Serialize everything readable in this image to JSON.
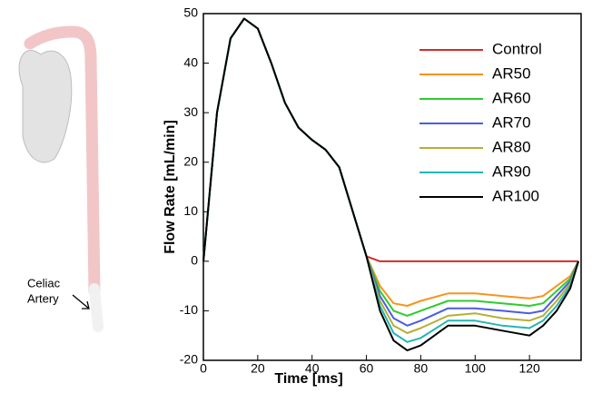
{
  "chart_data": {
    "type": "line",
    "xlabel": "Time [ms]",
    "ylabel": "Flow Rate [mL/min]",
    "annotations": [
      "Celiac",
      "Artery"
    ],
    "x": [
      0,
      5,
      10,
      15,
      20,
      25,
      30,
      35,
      40,
      45,
      50,
      55,
      60,
      65,
      70,
      75,
      80,
      90,
      100,
      110,
      120,
      125,
      130,
      135,
      138
    ],
    "series": [
      {
        "name": "Control",
        "color": "#d42a2a",
        "values": [
          0,
          30,
          45,
          49,
          47,
          40,
          32,
          27,
          24.5,
          22.5,
          19,
          10,
          1,
          0,
          0,
          0,
          0,
          0,
          0,
          0,
          0,
          0,
          0,
          0,
          0
        ]
      },
      {
        "name": "AR50",
        "color": "#f7941d",
        "values": [
          0,
          30,
          45,
          49,
          47,
          40,
          32,
          27,
          24.5,
          22.5,
          19,
          10,
          1,
          -5,
          -8.5,
          -9,
          -8,
          -6.5,
          -6.5,
          -7,
          -7.5,
          -7,
          -5,
          -3,
          0
        ]
      },
      {
        "name": "AR60",
        "color": "#2ecc2e",
        "values": [
          0,
          30,
          45,
          49,
          47,
          40,
          32,
          27,
          24.5,
          22.5,
          19,
          10,
          1,
          -6,
          -10,
          -11,
          -10,
          -8,
          -8,
          -8.5,
          -9,
          -8.5,
          -6,
          -3.5,
          0
        ]
      },
      {
        "name": "AR70",
        "color": "#4a5be8",
        "values": [
          0,
          30,
          45,
          49,
          47,
          40,
          32,
          27,
          24.5,
          22.5,
          19,
          10,
          1,
          -7,
          -11.5,
          -13,
          -12,
          -9.5,
          -9.5,
          -10,
          -10.5,
          -10,
          -7,
          -4,
          0
        ]
      },
      {
        "name": "AR80",
        "color": "#b5b032",
        "values": [
          0,
          30,
          45,
          49,
          47,
          40,
          32,
          27,
          24.5,
          22.5,
          19,
          10,
          1,
          -8,
          -13,
          -14.5,
          -13.5,
          -11,
          -10.5,
          -11.5,
          -12,
          -11,
          -8,
          -4.5,
          0
        ]
      },
      {
        "name": "AR90",
        "color": "#25b5b5",
        "values": [
          0,
          30,
          45,
          49,
          47,
          40,
          32,
          27,
          24.5,
          22.5,
          19,
          10,
          1,
          -9,
          -14.5,
          -16.3,
          -15.5,
          -12,
          -12,
          -13,
          -13.5,
          -12,
          -9,
          -5,
          0
        ]
      },
      {
        "name": "AR100",
        "color": "#000000",
        "values": [
          0,
          30,
          45,
          49,
          47,
          40,
          32,
          27,
          24.5,
          22.5,
          19,
          10,
          1,
          -10,
          -16,
          -18,
          -17,
          -13,
          -13,
          -14,
          -15,
          -13,
          -10,
          -5.5,
          0
        ]
      }
    ],
    "xlim": [
      0,
      139
    ],
    "xticks": [
      0,
      20,
      40,
      60,
      80,
      100,
      120
    ],
    "ylim": [
      -20,
      50
    ],
    "yticks": [
      -20,
      -10,
      0,
      10,
      20,
      30,
      40,
      50
    ],
    "legend": "upper-right"
  }
}
